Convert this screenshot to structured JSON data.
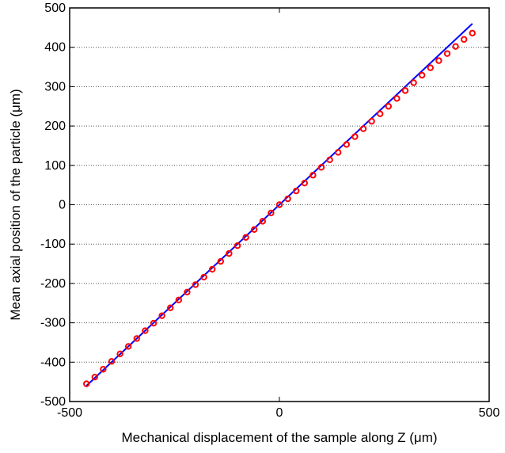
{
  "chart_data": {
    "type": "scatter",
    "title": "",
    "xlabel": "Mechanical displacement of the sample along Z (μm)",
    "ylabel": "Mean axial position of the particle (μm)",
    "xlim": [
      -500,
      500
    ],
    "ylim": [
      -500,
      500
    ],
    "xticks": [
      -500,
      0,
      500
    ],
    "yticks": [
      -500,
      -400,
      -300,
      -200,
      -100,
      0,
      100,
      200,
      300,
      400,
      500
    ],
    "x_tick_labels": [
      "-500",
      "0",
      "500"
    ],
    "y_tick_labels": [
      "-500",
      "-400",
      "-300",
      "-200",
      "-100",
      "0",
      "100",
      "200",
      "300",
      "400",
      "500"
    ],
    "grid": {
      "horizontal": true,
      "vertical": false,
      "style": "dotted"
    },
    "legend": "none",
    "colors": {
      "line": "#0000ff",
      "markers": "#ff0000"
    },
    "series": [
      {
        "type": "line",
        "x": [
          -460,
          460
        ],
        "y": [
          -460,
          460
        ]
      },
      {
        "type": "scatter",
        "marker": "circle-open",
        "x": [
          -460,
          -440,
          -420,
          -400,
          -380,
          -360,
          -340,
          -320,
          -300,
          -280,
          -260,
          -240,
          -220,
          -200,
          -180,
          -160,
          -140,
          -120,
          -100,
          -80,
          -60,
          -40,
          -20,
          0,
          20,
          40,
          60,
          80,
          100,
          120,
          140,
          160,
          180,
          200,
          220,
          240,
          260,
          280,
          300,
          320,
          340,
          360,
          380,
          400,
          420,
          440,
          460
        ],
        "y": [
          -455,
          -438,
          -418,
          -398,
          -379,
          -360,
          -340,
          -320,
          -301,
          -282,
          -262,
          -242,
          -222,
          -203,
          -184,
          -164,
          -144,
          -124,
          -104,
          -83,
          -63,
          -42,
          -21,
          0,
          15,
          35,
          55,
          75,
          95,
          114,
          133,
          153,
          173,
          193,
          212,
          231,
          250,
          270,
          290,
          310,
          329,
          348,
          366,
          384,
          402,
          420,
          436
        ]
      }
    ]
  }
}
